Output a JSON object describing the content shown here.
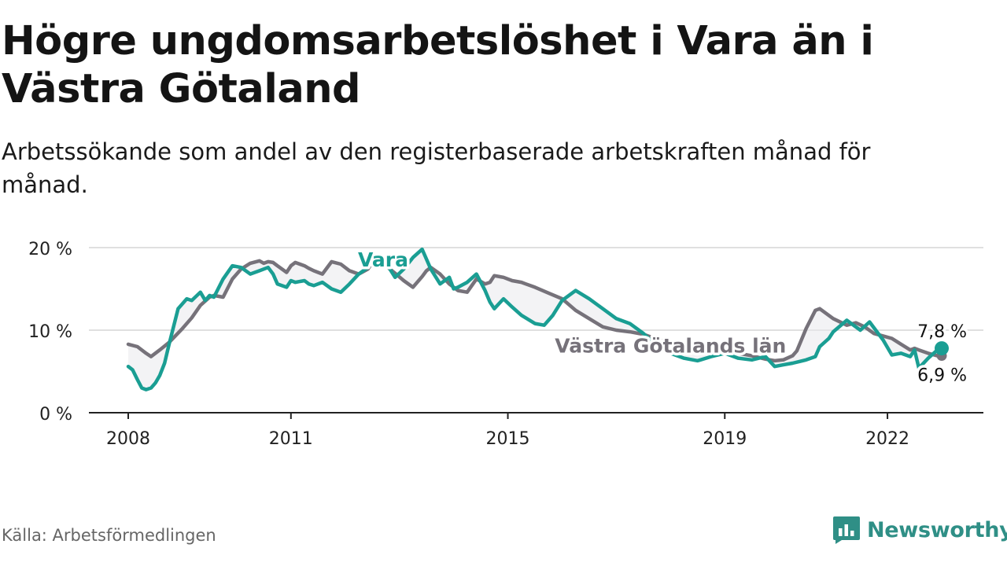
{
  "title": "Högre ungdomsarbetslöshet i Vara än i Västra Götaland",
  "subtitle": "Arbetssökande som andel av den registerbaserade arbetskraften månad för månad.",
  "source": "Källa: Arbetsförmedlingen",
  "brand": {
    "name": "Newsworthy",
    "icon": "newsworthy-logo-icon"
  },
  "chart_data": {
    "type": "line",
    "x_unit": "year (decimal)",
    "ylim": [
      0,
      20
    ],
    "xlim": [
      2008.0,
      2023.0
    ],
    "y_ticks": [
      {
        "value": 0,
        "label": "0 %"
      },
      {
        "value": 10,
        "label": "10 %"
      },
      {
        "value": 20,
        "label": "20 %"
      }
    ],
    "x_ticks": [
      {
        "value": 2008,
        "label": "2008"
      },
      {
        "value": 2011,
        "label": "2011"
      },
      {
        "value": 2015,
        "label": "2015"
      },
      {
        "value": 2019,
        "label": "2019"
      },
      {
        "value": 2022,
        "label": "2022"
      }
    ],
    "grid": true,
    "series": [
      {
        "name": "Västra Götalands län",
        "color": "#76727a",
        "end_label": "6,9 %",
        "x": [
          2008.0,
          2008.17,
          2008.33,
          2008.42,
          2008.58,
          2008.75,
          2009.0,
          2009.17,
          2009.33,
          2009.5,
          2009.58,
          2009.75,
          2009.92,
          2010.08,
          2010.25,
          2010.42,
          2010.5,
          2010.58,
          2010.67,
          2010.75,
          2010.92,
          2011.0,
          2011.08,
          2011.25,
          2011.33,
          2011.42,
          2011.58,
          2011.75,
          2011.92,
          2012.08,
          2012.25,
          2012.42,
          2012.5,
          2012.58,
          2012.75,
          2012.92,
          2013.08,
          2013.25,
          2013.42,
          2013.5,
          2013.58,
          2013.75,
          2013.92,
          2014.08,
          2014.25,
          2014.42,
          2014.58,
          2014.67,
          2014.75,
          2014.92,
          2015.08,
          2015.25,
          2015.33,
          2015.5,
          2015.75,
          2016.0,
          2016.25,
          2016.5,
          2016.75,
          2017.0,
          2017.25,
          2017.5,
          2017.75,
          2018.0,
          2018.25,
          2018.5,
          2018.75,
          2019.0,
          2019.25,
          2019.5,
          2019.75,
          2019.92,
          2020.08,
          2020.25,
          2020.33,
          2020.5,
          2020.67,
          2020.75,
          2021.0,
          2021.25,
          2021.42,
          2021.58,
          2021.75,
          2021.92,
          2022.08,
          2022.25,
          2022.42,
          2022.5,
          2022.58,
          2022.75,
          2022.92,
          2023.0
        ],
        "values": [
          8.3,
          8.0,
          7.2,
          6.8,
          7.6,
          8.5,
          10.2,
          11.5,
          13.0,
          14.0,
          14.2,
          14.0,
          16.2,
          17.4,
          18.1,
          18.4,
          18.1,
          18.3,
          18.2,
          17.8,
          17.0,
          17.8,
          18.2,
          17.8,
          17.5,
          17.2,
          16.8,
          18.3,
          18.0,
          17.2,
          16.8,
          17.4,
          18.2,
          17.8,
          17.8,
          16.9,
          16.0,
          15.2,
          16.5,
          17.2,
          17.6,
          16.8,
          15.6,
          14.8,
          14.6,
          16.2,
          15.6,
          15.8,
          16.6,
          16.4,
          16.0,
          15.8,
          15.6,
          15.2,
          14.5,
          13.8,
          12.4,
          11.4,
          10.4,
          10.0,
          9.8,
          9.5,
          8.9,
          8.4,
          8.2,
          7.8,
          7.6,
          7.4,
          7.2,
          6.9,
          6.5,
          6.3,
          6.4,
          6.9,
          7.5,
          10.2,
          12.4,
          12.6,
          11.4,
          10.6,
          10.9,
          10.4,
          9.6,
          9.3,
          9.0,
          8.3,
          7.6,
          7.8,
          7.6,
          7.2,
          6.9,
          6.9
        ]
      },
      {
        "name": "Vara",
        "color": "#1a9e93",
        "end_label": "7,8 %",
        "x": [
          2008.0,
          2008.08,
          2008.17,
          2008.25,
          2008.33,
          2008.42,
          2008.5,
          2008.58,
          2008.67,
          2008.75,
          2008.92,
          2009.08,
          2009.17,
          2009.33,
          2009.42,
          2009.5,
          2009.58,
          2009.75,
          2009.92,
          2010.08,
          2010.25,
          2010.42,
          2010.58,
          2010.67,
          2010.75,
          2010.92,
          2011.0,
          2011.08,
          2011.25,
          2011.33,
          2011.42,
          2011.58,
          2011.75,
          2011.92,
          2012.08,
          2012.25,
          2012.42,
          2012.5,
          2012.58,
          2012.75,
          2012.92,
          2013.08,
          2013.25,
          2013.42,
          2013.58,
          2013.75,
          2013.92,
          2014.0,
          2014.08,
          2014.25,
          2014.42,
          2014.58,
          2014.67,
          2014.75,
          2014.92,
          2015.08,
          2015.25,
          2015.5,
          2015.67,
          2015.83,
          2016.0,
          2016.25,
          2016.5,
          2016.75,
          2017.0,
          2017.25,
          2017.5,
          2017.75,
          2018.0,
          2018.25,
          2018.5,
          2018.75,
          2019.0,
          2019.25,
          2019.5,
          2019.75,
          2019.92,
          2020.08,
          2020.25,
          2020.5,
          2020.67,
          2020.75,
          2020.92,
          2021.0,
          2021.25,
          2021.5,
          2021.67,
          2021.92,
          2022.08,
          2022.25,
          2022.42,
          2022.5,
          2022.58,
          2022.75,
          2022.92,
          2023.0
        ],
        "values": [
          5.6,
          5.2,
          4.0,
          3.0,
          2.8,
          3.0,
          3.6,
          4.5,
          6.0,
          8.2,
          12.6,
          13.8,
          13.6,
          14.6,
          13.6,
          14.2,
          14.0,
          16.2,
          17.8,
          17.6,
          16.8,
          17.2,
          17.6,
          16.8,
          15.6,
          15.2,
          16.0,
          15.8,
          16.0,
          15.6,
          15.4,
          15.8,
          15.0,
          14.6,
          15.6,
          16.8,
          17.6,
          18.5,
          18.8,
          18.2,
          16.4,
          17.4,
          18.8,
          19.8,
          17.4,
          15.6,
          16.4,
          15.0,
          15.2,
          15.8,
          16.8,
          14.8,
          13.4,
          12.6,
          13.8,
          12.8,
          11.8,
          10.8,
          10.6,
          11.8,
          13.6,
          14.8,
          13.8,
          12.6,
          11.4,
          10.8,
          9.6,
          8.0,
          7.2,
          6.6,
          6.3,
          6.8,
          7.2,
          6.6,
          6.4,
          6.8,
          5.6,
          5.8,
          6.0,
          6.4,
          6.8,
          8.0,
          9.0,
          9.8,
          11.2,
          10.0,
          11.0,
          8.8,
          7.0,
          7.2,
          6.8,
          7.6,
          5.4,
          6.6,
          7.6,
          7.8
        ]
      }
    ]
  }
}
